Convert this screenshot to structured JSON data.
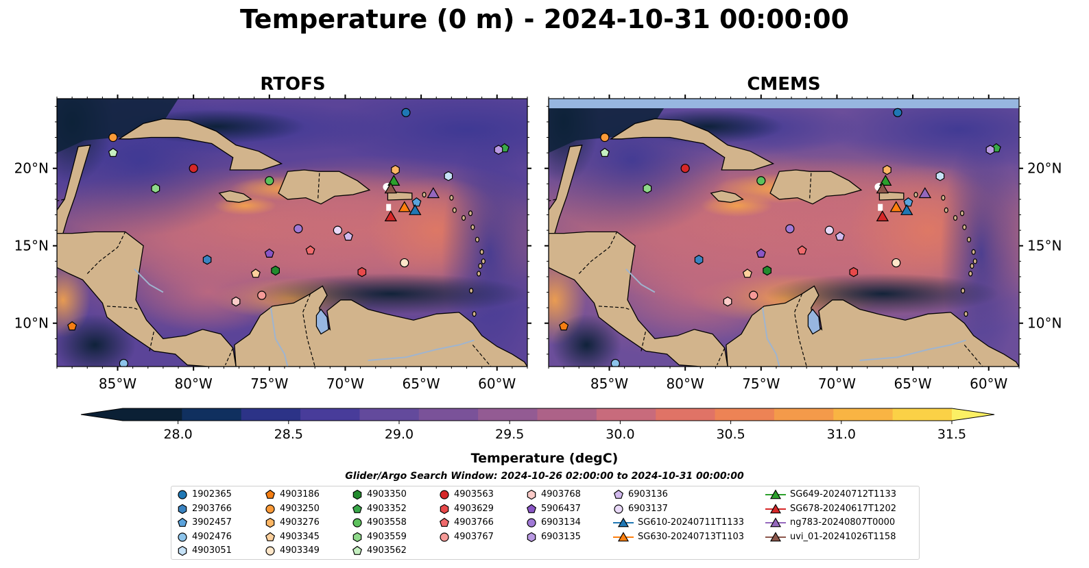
{
  "title": "Temperature (0 m) - 2024-10-31 00:00:00",
  "panels": [
    {
      "name": "RTOFS"
    },
    {
      "name": "CMEMS"
    }
  ],
  "axes": {
    "lon_ticks": [
      "85°W",
      "80°W",
      "75°W",
      "70°W",
      "65°W",
      "60°W"
    ],
    "lon_values": [
      -85,
      -80,
      -75,
      -70,
      -65,
      -60
    ],
    "lat_ticks": [
      "20°N",
      "15°N",
      "10°N"
    ],
    "lat_values": [
      20,
      15,
      10
    ],
    "lon_range": [
      -89,
      -58
    ],
    "lat_range": [
      7.2,
      24.5
    ]
  },
  "colorbar": {
    "label": "Temperature (degC)",
    "ticks": [
      "28.0",
      "28.5",
      "29.0",
      "29.5",
      "30.0",
      "30.5",
      "31.0",
      "31.5"
    ],
    "range": [
      27.75,
      31.5
    ],
    "colors": [
      "#0b2035",
      "#10305f",
      "#2c3387",
      "#483c9a",
      "#634a9c",
      "#7a5299",
      "#935b93",
      "#ad6288",
      "#c86b7c",
      "#e07366",
      "#ed8355",
      "#f49a4a",
      "#f9b443",
      "#fbd146",
      "#fbf064"
    ]
  },
  "search_window": "Glider/Argo Search Window: 2024-10-26 02:00:00 to 2024-10-31 00:00:00",
  "legend": [
    {
      "label": "1902365",
      "marker": "circle",
      "color": "#1f77b4"
    },
    {
      "label": "2903766",
      "marker": "hexagon",
      "color": "#3a83c1"
    },
    {
      "label": "3902457",
      "marker": "pentagon",
      "color": "#5ba3dc"
    },
    {
      "label": "4902476",
      "marker": "circle",
      "color": "#8dc4eb"
    },
    {
      "label": "4903051",
      "marker": "hexagon",
      "color": "#c6e2f7"
    },
    {
      "label": "4903186",
      "marker": "pentagon",
      "color": "#f57e13"
    },
    {
      "label": "4903250",
      "marker": "circle",
      "color": "#fb9a38"
    },
    {
      "label": "4903276",
      "marker": "hexagon",
      "color": "#fdb664"
    },
    {
      "label": "4903345",
      "marker": "pentagon",
      "color": "#fdd09c"
    },
    {
      "label": "4903349",
      "marker": "circle",
      "color": "#fee6c8"
    },
    {
      "label": "4903350",
      "marker": "hexagon",
      "color": "#238b2e"
    },
    {
      "label": "4903352",
      "marker": "pentagon",
      "color": "#3aa84a"
    },
    {
      "label": "4903558",
      "marker": "circle",
      "color": "#5cc15c"
    },
    {
      "label": "4903559",
      "marker": "hexagon",
      "color": "#8fd98a"
    },
    {
      "label": "4903562",
      "marker": "pentagon",
      "color": "#c5efc0"
    },
    {
      "label": "4903563",
      "marker": "circle",
      "color": "#d62728"
    },
    {
      "label": "4903629",
      "marker": "hexagon",
      "color": "#e8494a"
    },
    {
      "label": "4903766",
      "marker": "pentagon",
      "color": "#f06a6c"
    },
    {
      "label": "4903767",
      "marker": "circle",
      "color": "#f59a97"
    },
    {
      "label": "4903768",
      "marker": "hexagon",
      "color": "#fbcbc8"
    },
    {
      "label": "5906437",
      "marker": "pentagon",
      "color": "#8a56c6"
    },
    {
      "label": "6903134",
      "marker": "circle",
      "color": "#a079d6"
    },
    {
      "label": "6903135",
      "marker": "hexagon",
      "color": "#b999e2"
    },
    {
      "label": "6903136",
      "marker": "pentagon",
      "color": "#d2baee"
    },
    {
      "label": "6903137",
      "marker": "circle",
      "color": "#e9d9f8"
    },
    {
      "label": "SG610-20240711T1133",
      "marker": "triangle",
      "color": "#1f77b4"
    },
    {
      "label": "SG630-20240713T1103",
      "marker": "triangle",
      "color": "#ff7f0e"
    },
    {
      "label": "SG649-20240712T1133",
      "marker": "triangle",
      "color": "#2ca02c"
    },
    {
      "label": "SG678-20240617T1202",
      "marker": "triangle",
      "color": "#d62728"
    },
    {
      "label": "ng783-20240807T0000",
      "marker": "triangle",
      "color": "#9467bd"
    },
    {
      "label": "uvi_01-20241026T1158",
      "marker": "triangle",
      "color": "#8c564b"
    }
  ],
  "floats": [
    {
      "id": "1902365",
      "lon": -66.0,
      "lat": 23.6
    },
    {
      "id": "2903766",
      "lon": -79.1,
      "lat": 14.1
    },
    {
      "id": "3902457",
      "lon": -65.3,
      "lat": 17.8
    },
    {
      "id": "4902476",
      "lon": -84.6,
      "lat": 7.4
    },
    {
      "id": "4903051",
      "lon": -63.2,
      "lat": 19.5
    },
    {
      "id": "4903186",
      "lon": -88.0,
      "lat": 9.8
    },
    {
      "id": "4903250",
      "lon": -85.3,
      "lat": 22.0
    },
    {
      "id": "4903276",
      "lon": -66.7,
      "lat": 19.9
    },
    {
      "id": "4903345",
      "lon": -75.9,
      "lat": 13.2
    },
    {
      "id": "4903349",
      "lon": -66.1,
      "lat": 13.9
    },
    {
      "id": "4903350",
      "lon": -74.6,
      "lat": 13.4
    },
    {
      "id": "4903352",
      "lon": -59.5,
      "lat": 21.3
    },
    {
      "id": "4903558",
      "lon": -75.0,
      "lat": 19.2
    },
    {
      "id": "4903559",
      "lon": -82.5,
      "lat": 18.7
    },
    {
      "id": "4903562",
      "lon": -85.3,
      "lat": 21.0
    },
    {
      "id": "4903563",
      "lon": -80.0,
      "lat": 20.0
    },
    {
      "id": "4903629",
      "lon": -68.9,
      "lat": 13.3
    },
    {
      "id": "4903766",
      "lon": -72.3,
      "lat": 14.7
    },
    {
      "id": "4903767",
      "lon": -75.5,
      "lat": 11.8
    },
    {
      "id": "4903768",
      "lon": -77.2,
      "lat": 11.4
    },
    {
      "id": "5906437",
      "lon": -75.0,
      "lat": 14.5
    },
    {
      "id": "6903134",
      "lon": -73.1,
      "lat": 16.1
    },
    {
      "id": "6903135",
      "lon": -59.9,
      "lat": 21.2
    },
    {
      "id": "6903136",
      "lon": -69.8,
      "lat": 15.6
    },
    {
      "id": "6903137",
      "lon": -70.5,
      "lat": 16.0
    }
  ],
  "gliders": [
    {
      "id": "SG610-20240711T1133",
      "lon": -65.4,
      "lat": 17.3
    },
    {
      "id": "SG630-20240713T1103",
      "lon": -66.1,
      "lat": 17.5
    },
    {
      "id": "SG649-20240712T1133",
      "lon": -66.8,
      "lat": 19.2
    },
    {
      "id": "SG678-20240617T1202",
      "lon": -67.0,
      "lat": 16.9
    },
    {
      "id": "ng783-20240807T0000",
      "lon": -64.2,
      "lat": 18.4
    },
    {
      "id": "uvi_01-20241026T1158",
      "lon": -67.0,
      "lat": 18.7
    }
  ]
}
